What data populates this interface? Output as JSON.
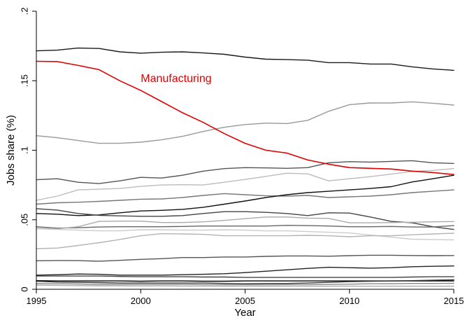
{
  "chart_data": {
    "type": "line",
    "title": "",
    "xlabel": "Year",
    "ylabel": "Jobs share (%)",
    "xlim": [
      1995,
      2015
    ],
    "ylim": [
      0,
      0.2
    ],
    "xticks": [
      1995,
      2000,
      2005,
      2010,
      2015
    ],
    "xtick_labels": [
      "1995",
      "2000",
      "2005",
      "2010",
      "2015"
    ],
    "yticks": [
      0,
      0.05,
      0.1,
      0.15,
      0.2
    ],
    "ytick_labels": [
      "0",
      ".05",
      ".1",
      ".15",
      ".2"
    ],
    "grid": false,
    "legend": "none",
    "x": [
      1995,
      1996,
      1997,
      1998,
      1999,
      2000,
      2001,
      2002,
      2003,
      2004,
      2005,
      2006,
      2007,
      2008,
      2009,
      2010,
      2011,
      2012,
      2013,
      2014,
      2015
    ],
    "annotations": [
      {
        "text": "Manufacturing",
        "x": 2000,
        "y": 0.149,
        "color": "#e00000"
      }
    ],
    "series": [
      {
        "color": "#e00000",
        "width": 1.6,
        "values": [
          0.164,
          0.1638,
          0.161,
          0.158,
          0.15,
          0.143,
          0.135,
          0.127,
          0.12,
          0.112,
          0.105,
          0.1,
          0.098,
          0.093,
          0.09,
          0.0875,
          0.087,
          0.0865,
          0.085,
          0.084,
          0.0825
        ]
      },
      {
        "color": "#1a1a1a",
        "width": 1.4,
        "values": [
          0.1715,
          0.172,
          0.1735,
          0.1732,
          0.1708,
          0.1698,
          0.1705,
          0.1708,
          0.17,
          0.169,
          0.167,
          0.1655,
          0.1652,
          0.1648,
          0.163,
          0.163,
          0.162,
          0.162,
          0.16,
          0.1585,
          0.1575
        ]
      },
      {
        "color": "#999999",
        "width": 1.4,
        "values": [
          0.1105,
          0.109,
          0.107,
          0.105,
          0.105,
          0.1058,
          0.1075,
          0.11,
          0.1135,
          0.1165,
          0.1185,
          0.1195,
          0.1192,
          0.1215,
          0.128,
          0.1328,
          0.134,
          0.134,
          0.1348,
          0.1338,
          0.1325
        ]
      },
      {
        "color": "#555555",
        "width": 1.4,
        "values": [
          0.0788,
          0.0795,
          0.077,
          0.076,
          0.078,
          0.0805,
          0.08,
          0.082,
          0.085,
          0.0868,
          0.0875,
          0.0873,
          0.087,
          0.0875,
          0.091,
          0.0918,
          0.0915,
          0.092,
          0.0925,
          0.091,
          0.0905
        ]
      },
      {
        "color": "#bbbbbb",
        "width": 1.4,
        "values": [
          0.064,
          0.067,
          0.0715,
          0.072,
          0.0725,
          0.074,
          0.075,
          0.0752,
          0.075,
          0.077,
          0.079,
          0.0812,
          0.0835,
          0.083,
          0.078,
          0.0795,
          0.081,
          0.0828,
          0.0848,
          0.0855,
          0.0868
        ]
      },
      {
        "color": "#777777",
        "width": 1.4,
        "values": [
          0.0612,
          0.0622,
          0.0626,
          0.0632,
          0.064,
          0.0648,
          0.065,
          0.066,
          0.0675,
          0.0688,
          0.068,
          0.0672,
          0.067,
          0.0675,
          0.066,
          0.0665,
          0.067,
          0.068,
          0.0695,
          0.0705,
          0.0715
        ]
      },
      {
        "color": "#111111",
        "width": 1.4,
        "values": [
          0.0545,
          0.054,
          0.053,
          0.0535,
          0.055,
          0.0563,
          0.0568,
          0.0575,
          0.059,
          0.0612,
          0.0635,
          0.066,
          0.068,
          0.0695,
          0.0705,
          0.0715,
          0.0725,
          0.0738,
          0.0772,
          0.0795,
          0.082
        ]
      },
      {
        "color": "#444444",
        "width": 1.4,
        "values": [
          0.058,
          0.057,
          0.0545,
          0.0532,
          0.0528,
          0.0525,
          0.0525,
          0.053,
          0.0545,
          0.0558,
          0.0558,
          0.0553,
          0.0545,
          0.053,
          0.055,
          0.0548,
          0.052,
          0.0488,
          0.0478,
          0.045,
          0.043
        ]
      },
      {
        "color": "#666666",
        "width": 1.4,
        "values": [
          0.045,
          0.044,
          0.0443,
          0.0448,
          0.045,
          0.045,
          0.045,
          0.0452,
          0.0455,
          0.0455,
          0.0455,
          0.0455,
          0.046,
          0.0458,
          0.0455,
          0.045,
          0.045,
          0.0452,
          0.0448,
          0.0448,
          0.0458
        ]
      },
      {
        "color": "#aaaaaa",
        "width": 1.4,
        "values": [
          0.0445,
          0.0435,
          0.045,
          0.0488,
          0.049,
          0.049,
          0.048,
          0.048,
          0.0485,
          0.0495,
          0.0508,
          0.052,
          0.052,
          0.0512,
          0.051,
          0.0478,
          0.0478,
          0.048,
          0.0482,
          0.0485,
          0.0487
        ]
      },
      {
        "color": "#cccccc",
        "width": 1.4,
        "values": [
          0.0435,
          0.043,
          0.0425,
          0.042,
          0.042,
          0.0428,
          0.0428,
          0.0425,
          0.0425,
          0.0428,
          0.0425,
          0.042,
          0.042,
          0.0415,
          0.041,
          0.0405,
          0.039,
          0.0375,
          0.036,
          0.0357,
          0.0355
        ]
      },
      {
        "color": "#b3b3b3",
        "width": 1.4,
        "values": [
          0.0292,
          0.0296,
          0.0315,
          0.0335,
          0.0358,
          0.0385,
          0.04,
          0.0398,
          0.0395,
          0.0385,
          0.0385,
          0.0385,
          0.0385,
          0.0388,
          0.0385,
          0.0378,
          0.0385,
          0.0385,
          0.0392,
          0.0398,
          0.0403
        ]
      },
      {
        "color": "#555555",
        "width": 1.4,
        "values": [
          0.0205,
          0.0207,
          0.0206,
          0.0202,
          0.0208,
          0.0215,
          0.022,
          0.0228,
          0.0228,
          0.0232,
          0.0232,
          0.0237,
          0.024,
          0.024,
          0.0238,
          0.0242,
          0.0245,
          0.0245,
          0.0243,
          0.0242,
          0.0243
        ]
      },
      {
        "color": "#222222",
        "width": 1.4,
        "values": [
          0.0102,
          0.0105,
          0.011,
          0.0108,
          0.0102,
          0.0102,
          0.0102,
          0.0105,
          0.0108,
          0.0112,
          0.012,
          0.013,
          0.014,
          0.015,
          0.0158,
          0.0155,
          0.0152,
          0.0155,
          0.0162,
          0.0165,
          0.0168
        ]
      },
      {
        "color": "#444444",
        "width": 1.4,
        "values": [
          0.0095,
          0.0095,
          0.0095,
          0.0095,
          0.0092,
          0.009,
          0.009,
          0.009,
          0.0088,
          0.0088,
          0.0085,
          0.0085,
          0.0085,
          0.0085,
          0.0085,
          0.0085,
          0.0085,
          0.0085,
          0.0088,
          0.009,
          0.009
        ]
      },
      {
        "color": "#000000",
        "width": 1.4,
        "values": [
          0.0062,
          0.006,
          0.006,
          0.006,
          0.006,
          0.0058,
          0.006,
          0.006,
          0.0058,
          0.0058,
          0.006,
          0.006,
          0.006,
          0.006,
          0.006,
          0.006,
          0.006,
          0.006,
          0.006,
          0.006,
          0.006
        ]
      },
      {
        "color": "#333333",
        "width": 1.4,
        "values": [
          0.0058,
          0.0052,
          0.005,
          0.0048,
          0.0045,
          0.0045,
          0.0045,
          0.0045,
          0.0045,
          0.0042,
          0.004,
          0.0042,
          0.0042,
          0.0045,
          0.005,
          0.0055,
          0.0058,
          0.006,
          0.0062,
          0.0065,
          0.0068
        ]
      },
      {
        "color": "#888888",
        "width": 1.4,
        "values": [
          0.0042,
          0.004,
          0.0038,
          0.0035,
          0.0035,
          0.0035,
          0.0035,
          0.0035,
          0.0033,
          0.0032,
          0.0032,
          0.0032,
          0.0033,
          0.0033,
          0.0035,
          0.0037,
          0.004,
          0.004,
          0.0042,
          0.0042,
          0.0043
        ]
      },
      {
        "color": "#aaaaaa",
        "width": 1.4,
        "values": [
          0.003,
          0.0028,
          0.0026,
          0.0025,
          0.0025,
          0.0024,
          0.0024,
          0.0023,
          0.0023,
          0.0022,
          0.0022,
          0.0022,
          0.0022,
          0.0022,
          0.0022,
          0.0022,
          0.0022,
          0.0022,
          0.0022,
          0.0022,
          0.0022
        ]
      }
    ]
  }
}
